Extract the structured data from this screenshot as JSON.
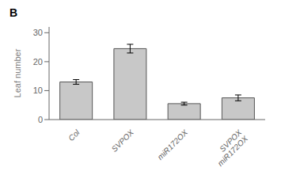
{
  "chart_data": {
    "type": "bar",
    "title": "B",
    "categories": [
      "Col",
      "SVPOX",
      "miR172OX",
      "SVPOX\nmiR172OX"
    ],
    "values": [
      13,
      24.5,
      5.5,
      7.5
    ],
    "errors": [
      0.8,
      1.5,
      0.5,
      1.0
    ],
    "color": "#c8c8c8",
    "y_label": "Leaf number",
    "ylim": [
      0,
      32
    ],
    "yticks": [
      0,
      10,
      20,
      30
    ],
    "grid": false
  }
}
